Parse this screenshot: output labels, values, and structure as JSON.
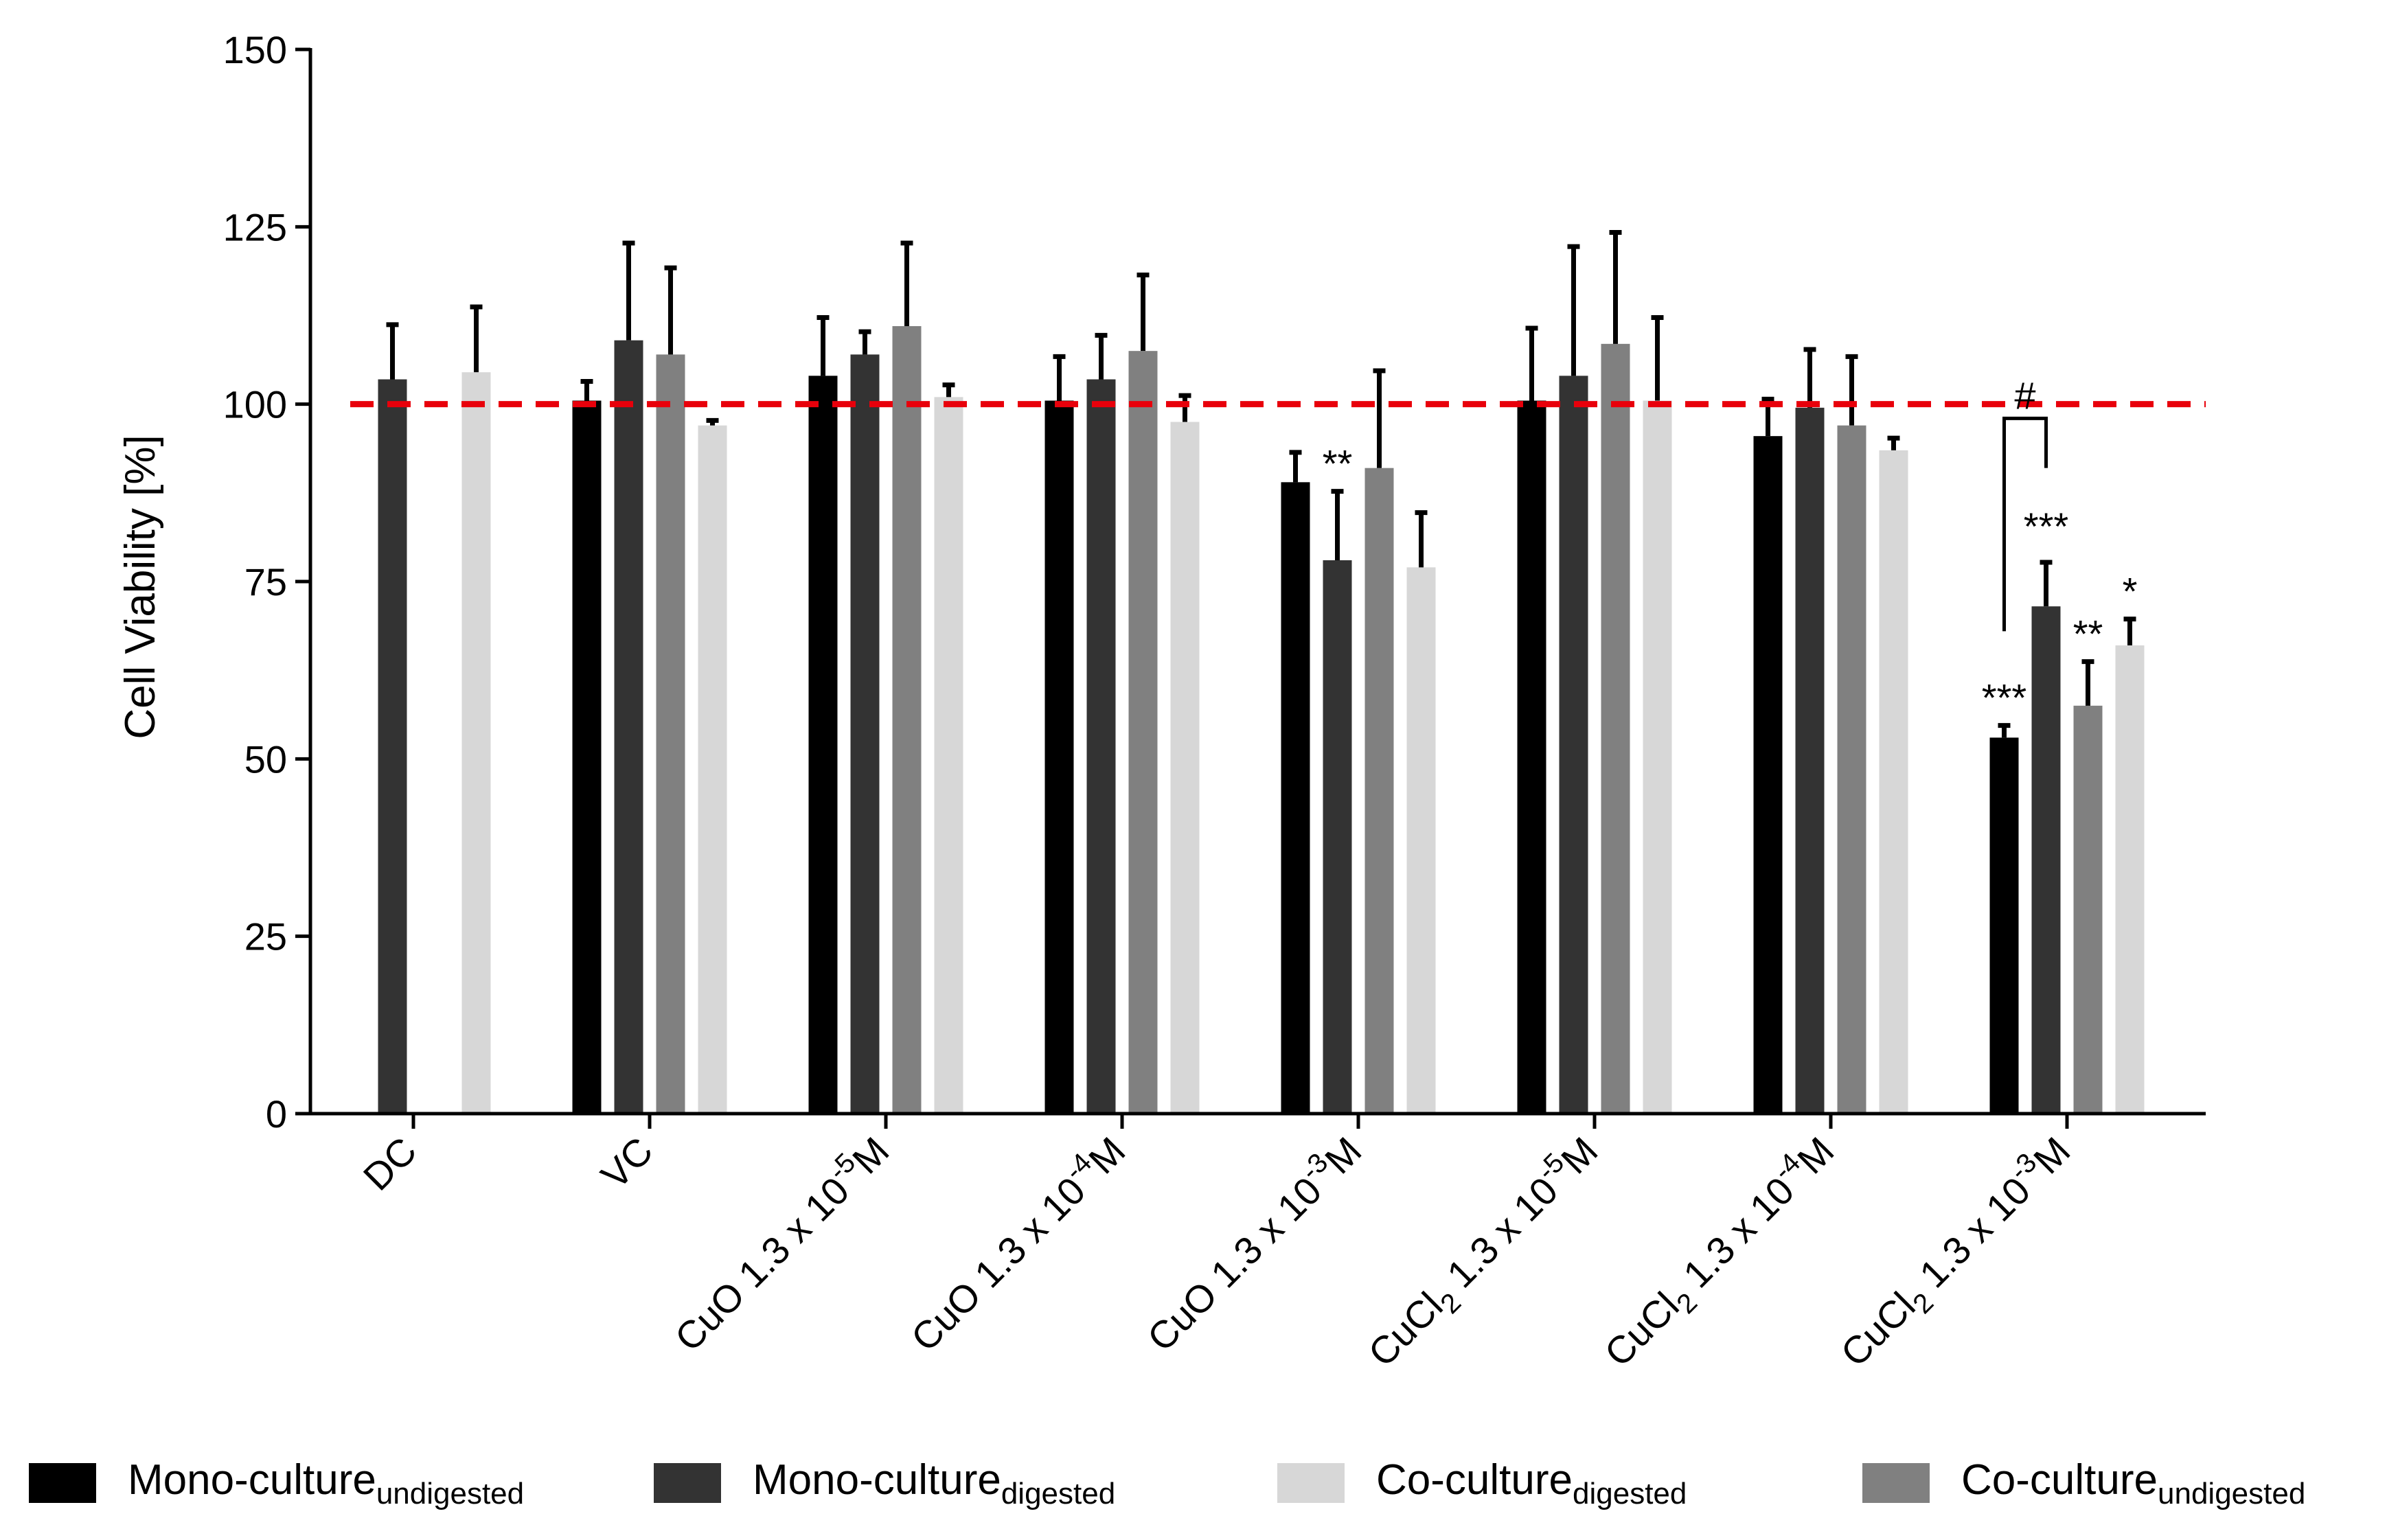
{
  "chart_data": {
    "type": "bar",
    "title": "",
    "xlabel": "",
    "ylabel": "Cell Viability [%]",
    "ylim": [
      0,
      150
    ],
    "yticks": [
      "0",
      "25",
      "50",
      "75",
      "100",
      "125",
      "150"
    ],
    "reference_line": {
      "value": 100,
      "color": "#e8000b",
      "style": "dashed"
    },
    "categories": [
      {
        "main": "DC",
        "sub": "",
        "exp": "",
        "tail": ""
      },
      {
        "main": "VC",
        "sub": "",
        "exp": "",
        "tail": ""
      },
      {
        "main": "CuO 1.3 x 10",
        "sub": "",
        "exp": "-5",
        "tail": "M"
      },
      {
        "main": "CuO 1.3 x 10",
        "sub": "",
        "exp": "-4",
        "tail": "M"
      },
      {
        "main": "CuO 1.3 x 10",
        "sub": "",
        "exp": "-3",
        "tail": "M"
      },
      {
        "main": "CuCl",
        "sub": "2",
        "exp": "-5",
        "tail": "M",
        "mid": " 1.3 x 10"
      },
      {
        "main": "CuCl",
        "sub": "2",
        "exp": "-4",
        "tail": "M",
        "mid": " 1.3 x 10"
      },
      {
        "main": "CuCl",
        "sub": "2",
        "exp": "-3",
        "tail": "M",
        "mid": " 1.3 x 10"
      }
    ],
    "series": [
      {
        "name": "Mono-culture",
        "subscript": "undigested",
        "color": "#000000",
        "values": [
          null,
          100.5,
          104,
          100.5,
          89,
          100.5,
          95.5,
          53
        ],
        "errors": [
          null,
          3,
          8.5,
          6.5,
          4.5,
          10.5,
          5.5,
          2
        ]
      },
      {
        "name": "Mono-culture",
        "subscript": "digested",
        "color": "#333333",
        "values": [
          103.5,
          109,
          107,
          103.5,
          78,
          104,
          99.5,
          71.5
        ],
        "errors": [
          8,
          14,
          3.5,
          6.5,
          10,
          18.5,
          8.5,
          6.5
        ]
      },
      {
        "name": "Co-culture",
        "subscript": "undigested",
        "color": "#808080",
        "values": [
          null,
          107,
          111,
          107.5,
          91,
          108.5,
          97,
          57.5
        ],
        "errors": [
          null,
          12.5,
          12,
          11,
          14,
          16,
          10,
          6.5
        ]
      },
      {
        "name": "Co-culture",
        "subscript": "digested",
        "color": "#d7d7d7",
        "values": [
          104.5,
          97,
          101,
          97.5,
          77,
          100.5,
          93.5,
          66
        ],
        "errors": [
          9.5,
          1,
          2,
          4,
          8,
          12,
          2,
          4
        ]
      }
    ],
    "annotations": [
      {
        "text": "**",
        "category": 4,
        "series": 1
      },
      {
        "text": "***",
        "category": 7,
        "series": 0
      },
      {
        "text": "***",
        "category": 7,
        "series": 1
      },
      {
        "text": "**",
        "category": 7,
        "series": 2
      },
      {
        "text": "*",
        "category": 7,
        "series": 3
      },
      {
        "text": "#",
        "category": 7,
        "bracket_between_series": [
          0,
          1
        ]
      }
    ],
    "legend": {
      "placement": "bottom",
      "entries": [
        {
          "name": "Mono-culture",
          "subscript": "undigested",
          "color": "#000000"
        },
        {
          "name": "Mono-culture",
          "subscript": "digested",
          "color": "#333333"
        },
        {
          "name": "Co-culture",
          "subscript": "digested",
          "color": "#d7d7d7"
        },
        {
          "name": "Co-culture",
          "subscript": "undigested",
          "color": "#808080"
        }
      ]
    }
  }
}
